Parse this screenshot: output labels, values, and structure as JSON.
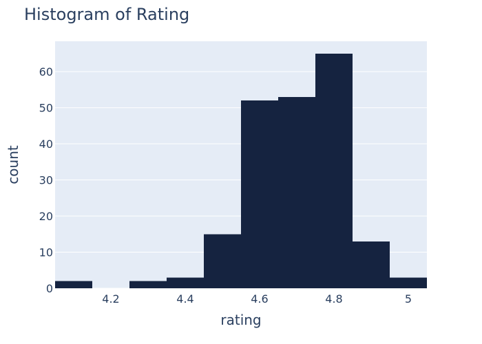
{
  "chart_data": {
    "type": "bar",
    "title": "Histogram of Rating",
    "xlabel": "rating",
    "ylabel": "count",
    "bin_width": 0.1,
    "bins": [
      {
        "x0": 4.05,
        "x1": 4.15,
        "count": 2
      },
      {
        "x0": 4.15,
        "x1": 4.25,
        "count": 0
      },
      {
        "x0": 4.25,
        "x1": 4.35,
        "count": 2
      },
      {
        "x0": 4.35,
        "x1": 4.45,
        "count": 3
      },
      {
        "x0": 4.45,
        "x1": 4.55,
        "count": 15
      },
      {
        "x0": 4.55,
        "x1": 4.65,
        "count": 52
      },
      {
        "x0": 4.65,
        "x1": 4.75,
        "count": 53
      },
      {
        "x0": 4.75,
        "x1": 4.85,
        "count": 65
      },
      {
        "x0": 4.85,
        "x1": 4.95,
        "count": 13
      },
      {
        "x0": 4.95,
        "x1": 5.05,
        "count": 3
      }
    ],
    "xlim": [
      4.05,
      5.05
    ],
    "ylim": [
      0,
      68.4
    ],
    "x_ticks": [
      {
        "value": 4.2,
        "label": "4.2"
      },
      {
        "value": 4.4,
        "label": "4.4"
      },
      {
        "value": 4.6,
        "label": "4.6"
      },
      {
        "value": 4.8,
        "label": "4.8"
      },
      {
        "value": 5.0,
        "label": "5"
      }
    ],
    "y_ticks": [
      {
        "value": 0,
        "label": "0"
      },
      {
        "value": 10,
        "label": "10"
      },
      {
        "value": 20,
        "label": "20"
      },
      {
        "value": 30,
        "label": "30"
      },
      {
        "value": 40,
        "label": "40"
      },
      {
        "value": 50,
        "label": "50"
      },
      {
        "value": 60,
        "label": "60"
      }
    ],
    "grid": true,
    "legend": false,
    "colors": {
      "bar": "#152340",
      "plot_background": "#e5ecf6",
      "grid": "#ffffff",
      "text": "#2a3f5f"
    }
  }
}
